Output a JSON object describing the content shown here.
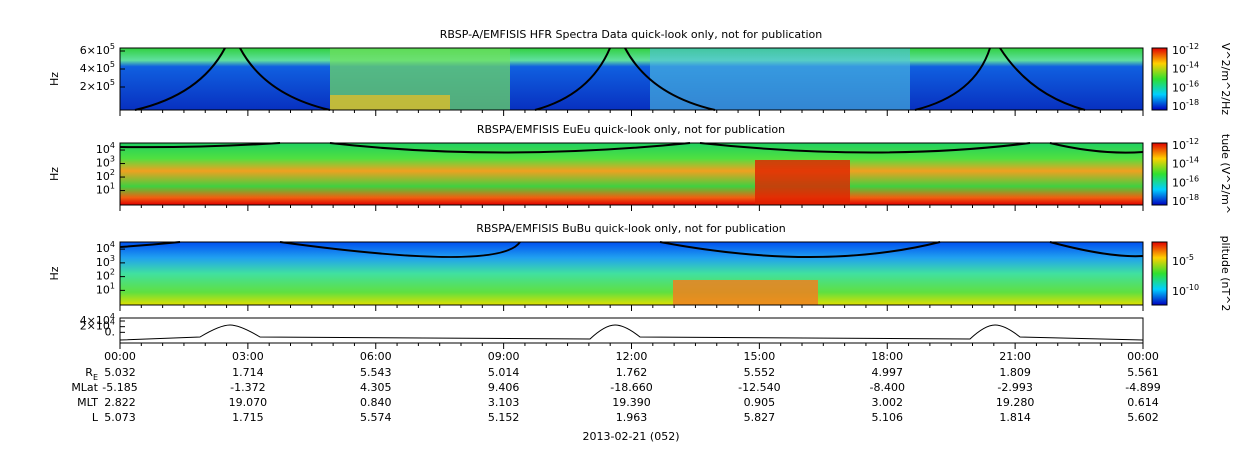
{
  "panels": [
    {
      "title": "RBSP-A/EMFISIS  HFR Spectra Data quick-look only, not for publication",
      "ylabel": "Hz",
      "yticks": [
        {
          "base": "6×10",
          "exp": "5"
        },
        {
          "base": "4×10",
          "exp": "5"
        },
        {
          "base": "2×10",
          "exp": "5"
        }
      ],
      "colorbar_label": "V^2/m^2/Hz",
      "colorbar_ticks": [
        {
          "base": "10",
          "exp": "-12"
        },
        {
          "base": "10",
          "exp": "-14"
        },
        {
          "base": "10",
          "exp": "-16"
        },
        {
          "base": "10",
          "exp": "-18"
        }
      ]
    },
    {
      "title": "RBSPA/EMFISIS  EuEu quick-look only, not for publication",
      "ylabel": "Hz",
      "yticks": [
        {
          "base": "10",
          "exp": "4"
        },
        {
          "base": "10",
          "exp": "3"
        },
        {
          "base": "10",
          "exp": "2"
        },
        {
          "base": "10",
          "exp": "1"
        }
      ],
      "colorbar_label": "tude (V^2/m^",
      "colorbar_ticks": [
        {
          "base": "10",
          "exp": "-12"
        },
        {
          "base": "10",
          "exp": "-14"
        },
        {
          "base": "10",
          "exp": "-16"
        },
        {
          "base": "10",
          "exp": "-18"
        }
      ]
    },
    {
      "title": "RBSPA/EMFISIS  BuBu quick-look only, not for publication",
      "ylabel": "Hz",
      "yticks": [
        {
          "base": "10",
          "exp": "4"
        },
        {
          "base": "10",
          "exp": "3"
        },
        {
          "base": "10",
          "exp": "2"
        },
        {
          "base": "10",
          "exp": "1"
        }
      ],
      "colorbar_label": "plitude (nT^2",
      "colorbar_ticks": [
        {
          "base": "10",
          "exp": "-5"
        },
        {
          "base": "10",
          "exp": "-10"
        }
      ]
    },
    {
      "yticks": [
        {
          "base": "4×10",
          "exp": "4"
        },
        {
          "base": "2×10",
          "exp": "4"
        },
        {
          "base": "0.",
          "exp": ""
        }
      ]
    }
  ],
  "xticks": [
    "00:00",
    "03:00",
    "06:00",
    "09:00",
    "12:00",
    "15:00",
    "18:00",
    "21:00",
    "00:00"
  ],
  "ephemeris": [
    {
      "label": "R",
      "sub": "E",
      "values": [
        "5.032",
        "1.714",
        "5.543",
        "5.014",
        "1.762",
        "5.552",
        "4.997",
        "1.809",
        "5.561"
      ]
    },
    {
      "label": "MLat",
      "values": [
        "-5.185",
        "-1.372",
        "4.305",
        "9.406",
        "-18.660",
        "-12.540",
        "-8.400",
        "-2.993",
        "-4.899"
      ]
    },
    {
      "label": "MLT",
      "values": [
        "2.822",
        "19.070",
        "0.840",
        "3.103",
        "19.390",
        "0.905",
        "3.002",
        "19.280",
        "0.614"
      ]
    },
    {
      "label": "L",
      "values": [
        "5.073",
        "1.715",
        "5.574",
        "5.152",
        "1.963",
        "5.827",
        "5.106",
        "1.814",
        "5.602"
      ]
    }
  ],
  "date": "2013-02-21 (052)"
}
